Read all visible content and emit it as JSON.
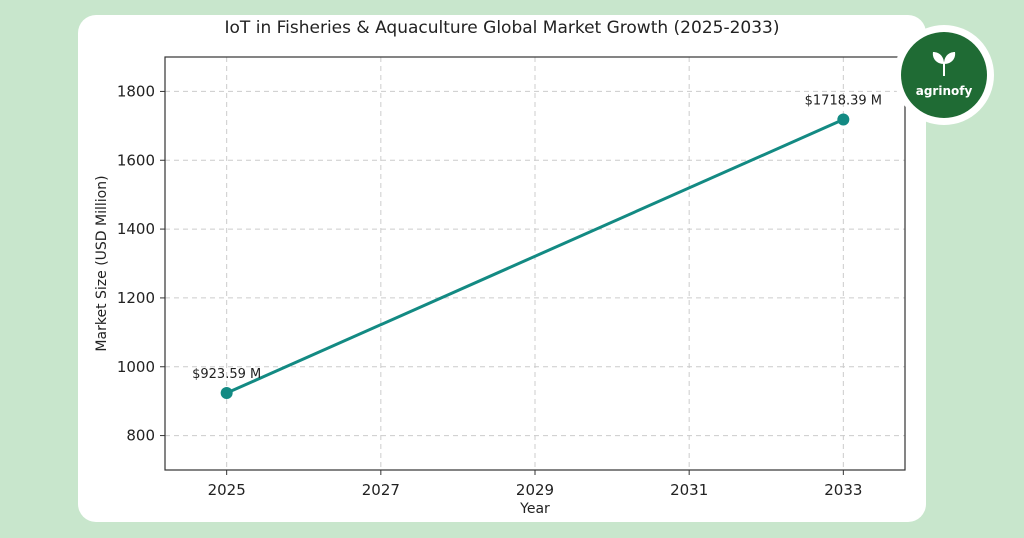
{
  "brand": {
    "name": "agrinofy",
    "icon": "leaf-icon"
  },
  "colors": {
    "background": "#c8e6cc",
    "line": "#138a83",
    "logo": "#1f6b34",
    "grid": "#cccccc"
  },
  "chart_data": {
    "type": "line",
    "title": "IoT in Fisheries & Aquaculture Global Market Growth (2025-2033)",
    "xlabel": "Year",
    "ylabel": "Market Size (USD Million)",
    "x": [
      2025,
      2033
    ],
    "y": [
      923.59,
      1718.39
    ],
    "point_labels": [
      "$923.59 M",
      "$1718.39 M"
    ],
    "xticks": [
      2025,
      2027,
      2029,
      2031,
      2033
    ],
    "yticks": [
      800,
      1000,
      1200,
      1400,
      1600,
      1800
    ],
    "xlim": [
      2024.2,
      2033.8
    ],
    "ylim": [
      700,
      1900
    ],
    "grid": true,
    "markers": true
  }
}
